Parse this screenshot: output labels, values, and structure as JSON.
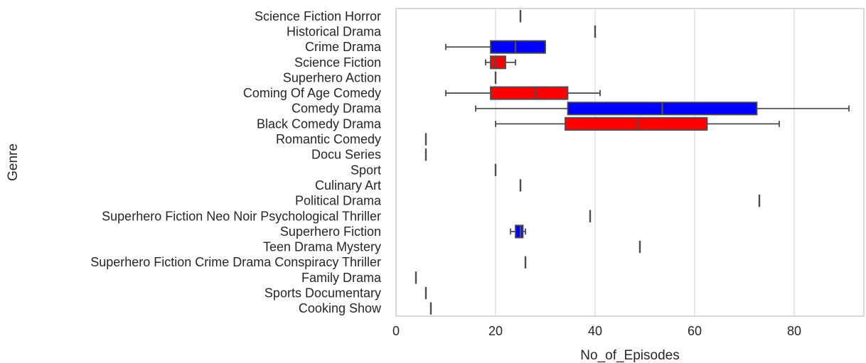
{
  "chart_data": {
    "type": "box",
    "orientation": "horizontal",
    "xlabel": "No_of_Episodes",
    "ylabel": "Genre",
    "xlim": [
      0,
      94
    ],
    "xticks": [
      0,
      20,
      40,
      60,
      80
    ],
    "grid": "vertical",
    "legend": "none",
    "colors": {
      "blue": "#0000ff",
      "red": "#ff0000",
      "line": "#4d4d4d",
      "grid": "#d9d9d9",
      "frame": "#cccccc"
    },
    "categories": [
      "Science Fiction Horror",
      "Historical Drama",
      "Crime Drama",
      "Science Fiction",
      "Superhero Action",
      "Coming Of Age Comedy",
      "Comedy Drama",
      "Black Comedy Drama",
      "Romantic Comedy",
      "Docu Series",
      "Sport",
      "Culinary Art",
      "Political Drama",
      "Superhero Fiction Neo Noir Psychological Thriller",
      "Superhero Fiction",
      "Teen Drama Mystery",
      "Superhero Fiction Crime Drama Conspiracy Thriller",
      "Family Drama",
      "Sports Documentary",
      "Cooking Show"
    ],
    "boxes": [
      {
        "genre": "Science Fiction Horror",
        "min": 25,
        "q1": 25,
        "median": 25,
        "q3": 25,
        "max": 25,
        "color": "blue"
      },
      {
        "genre": "Historical Drama",
        "min": 40,
        "q1": 40,
        "median": 40,
        "q3": 40,
        "max": 40,
        "color": "red"
      },
      {
        "genre": "Crime Drama",
        "min": 10,
        "q1": 19,
        "median": 24,
        "q3": 30,
        "max": 30,
        "color": "blue"
      },
      {
        "genre": "Science Fiction",
        "min": 18,
        "q1": 19,
        "median": 20,
        "q3": 22,
        "max": 24,
        "color": "red"
      },
      {
        "genre": "Superhero Action",
        "min": 20,
        "q1": 20,
        "median": 20,
        "q3": 20,
        "max": 20,
        "color": "blue"
      },
      {
        "genre": "Coming Of Age Comedy",
        "min": 10,
        "q1": 19,
        "median": 28,
        "q3": 34.5,
        "max": 41,
        "color": "red"
      },
      {
        "genre": "Comedy Drama",
        "min": 16,
        "q1": 34.5,
        "median": 53.5,
        "q3": 72.5,
        "max": 91,
        "color": "blue"
      },
      {
        "genre": "Black Comedy Drama",
        "min": 20,
        "q1": 34,
        "median": 48.5,
        "q3": 62.5,
        "max": 77,
        "color": "red"
      },
      {
        "genre": "Romantic Comedy",
        "min": 6,
        "q1": 6,
        "median": 6,
        "q3": 6,
        "max": 6,
        "color": "blue"
      },
      {
        "genre": "Docu Series",
        "min": 6,
        "q1": 6,
        "median": 6,
        "q3": 6,
        "max": 6,
        "color": "red"
      },
      {
        "genre": "Sport",
        "min": 20,
        "q1": 20,
        "median": 20,
        "q3": 20,
        "max": 20,
        "color": "blue"
      },
      {
        "genre": "Culinary Art",
        "min": 25,
        "q1": 25,
        "median": 25,
        "q3": 25,
        "max": 25,
        "color": "red"
      },
      {
        "genre": "Political Drama",
        "min": 73,
        "q1": 73,
        "median": 73,
        "q3": 73,
        "max": 73,
        "color": "blue"
      },
      {
        "genre": "Superhero Fiction Neo Noir Psychological Thriller",
        "min": 39,
        "q1": 39,
        "median": 39,
        "q3": 39,
        "max": 39,
        "color": "red"
      },
      {
        "genre": "Superhero Fiction",
        "min": 23,
        "q1": 24,
        "median": 25,
        "q3": 25.5,
        "max": 26,
        "color": "blue"
      },
      {
        "genre": "Teen Drama Mystery",
        "min": 49,
        "q1": 49,
        "median": 49,
        "q3": 49,
        "max": 49,
        "color": "red"
      },
      {
        "genre": "Superhero Fiction Crime Drama Conspiracy Thriller",
        "min": 26,
        "q1": 26,
        "median": 26,
        "q3": 26,
        "max": 26,
        "color": "blue"
      },
      {
        "genre": "Family Drama",
        "min": 4,
        "q1": 4,
        "median": 4,
        "q3": 4,
        "max": 4,
        "color": "red"
      },
      {
        "genre": "Sports Documentary",
        "min": 6,
        "q1": 6,
        "median": 6,
        "q3": 6,
        "max": 6,
        "color": "blue"
      },
      {
        "genre": "Cooking Show",
        "min": 7,
        "q1": 7,
        "median": 7,
        "q3": 7,
        "max": 7,
        "color": "red"
      }
    ]
  }
}
